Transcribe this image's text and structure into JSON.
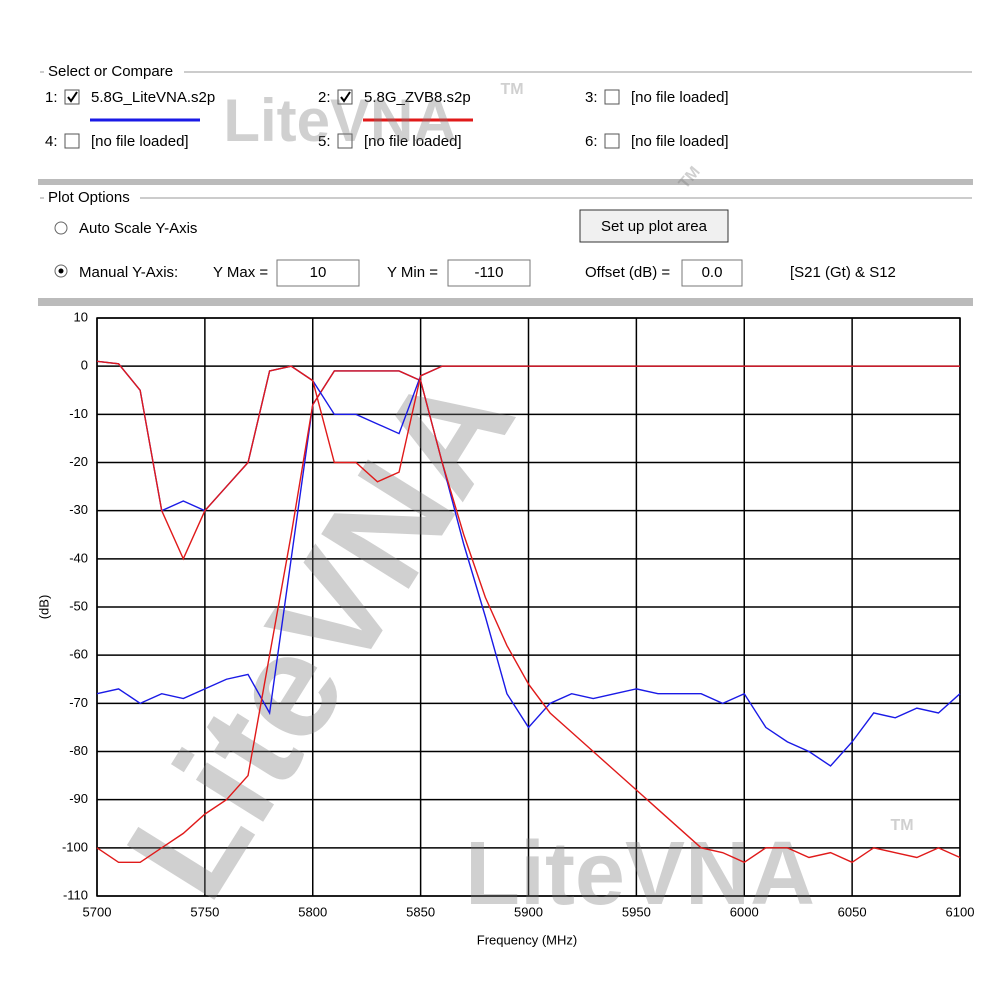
{
  "ui": {
    "select_title": "Select or Compare",
    "files": [
      {
        "slot": "1:",
        "name": "5.8G_LiteVNA.s2p",
        "checked": true,
        "color": "#1a1ae6"
      },
      {
        "slot": "2:",
        "name": "5.8G_ZVB8.s2p",
        "checked": true,
        "color": "#e01a1a"
      },
      {
        "slot": "3:",
        "name": "[no file loaded]",
        "checked": false
      },
      {
        "slot": "4:",
        "name": "[no file loaded]",
        "checked": false
      },
      {
        "slot": "5:",
        "name": "[no file loaded]",
        "checked": false
      },
      {
        "slot": "6:",
        "name": "[no file loaded]",
        "checked": false
      }
    ],
    "plot_title": "Plot Options",
    "auto_scale": "Auto Scale Y-Axis",
    "manual": "Manual Y-Axis:",
    "ymax_label": "Y Max =",
    "ymin_label": "Y Min =",
    "offset_label": "Offset (dB) =",
    "offset_value": "0.0",
    "setup_button": "Set up plot area",
    "mode": "[S21 (Gt) & S12",
    "watermarks": [
      "LiteVNA",
      "LiteVNA",
      "LiteVNA",
      "TM",
      "TM",
      "TM"
    ]
  },
  "chart_data": {
    "type": "line",
    "x_label": "Frequency (MHz)",
    "y_label": "(dB)",
    "x": [
      5700,
      5710,
      5720,
      5730,
      5740,
      5750,
      5760,
      5770,
      5780,
      5790,
      5800,
      5810,
      5820,
      5830,
      5840,
      5850,
      5860,
      5870,
      5880,
      5890,
      5900,
      5910,
      5920,
      5930,
      5940,
      5950,
      5960,
      5970,
      5980,
      5990,
      6000,
      6010,
      6020,
      6030,
      6040,
      6050,
      6060,
      6070,
      6080,
      6090,
      6100
    ],
    "series": [
      {
        "color": "#1a1ae6",
        "values": [
          -68,
          -67,
          -70,
          -68,
          -69,
          -67,
          -65,
          -64,
          -72,
          -40,
          -8,
          -1,
          -1,
          -1,
          -1,
          -3,
          -20,
          -37,
          -52,
          -68,
          -75,
          -70,
          -68,
          -69,
          -68,
          -67,
          -68,
          -68,
          -68,
          -70,
          -68,
          -75,
          -78,
          -80,
          -83,
          -78,
          -72,
          -73,
          -71,
          -72,
          -68
        ]
      },
      {
        "color": "#e01a1a",
        "values": [
          -100,
          -103,
          -103,
          -100,
          -97,
          -93,
          -90,
          -85,
          -60,
          -35,
          -8,
          -1,
          -1,
          -1,
          -1,
          -3,
          -20,
          -35,
          -48,
          -58,
          -66,
          -72,
          -76,
          -80,
          -84,
          -88,
          -92,
          -96,
          -100,
          -101,
          -103,
          -100,
          -100,
          -102,
          -101,
          -103,
          -100,
          -101,
          -102,
          -100,
          -102
        ]
      },
      {
        "color": "#1a1ae6",
        "values": [
          1,
          0.5,
          -5,
          -30,
          -28,
          -30,
          -25,
          -20,
          -1,
          0,
          -3,
          -10,
          -10,
          -12,
          -14,
          -2,
          0,
          0,
          0,
          0,
          0,
          0,
          0,
          0,
          0,
          0,
          0,
          0,
          0,
          0,
          0,
          0,
          0,
          0,
          0,
          0,
          0,
          0,
          0,
          0,
          0
        ]
      },
      {
        "color": "#e01a1a",
        "values": [
          1,
          0.5,
          -5,
          -30,
          -40,
          -30,
          -25,
          -20,
          -1,
          0,
          -3,
          -20,
          -20,
          -24,
          -22,
          -2,
          0,
          0,
          0,
          0,
          0,
          0,
          0,
          0,
          0,
          0,
          0,
          0,
          0,
          0,
          0,
          0,
          0,
          0,
          0,
          0,
          0,
          0,
          0,
          0,
          0
        ]
      }
    ],
    "xlim": [
      5700,
      6100
    ],
    "xticks": [
      5700,
      5750,
      5800,
      5850,
      5900,
      5950,
      6000,
      6050,
      6100
    ],
    "ylim": [
      -110,
      10
    ],
    "yticks": [
      -110,
      -100,
      -90,
      -80,
      -70,
      -60,
      -50,
      -40,
      -30,
      -20,
      -10,
      0,
      10
    ],
    "grid": true
  }
}
